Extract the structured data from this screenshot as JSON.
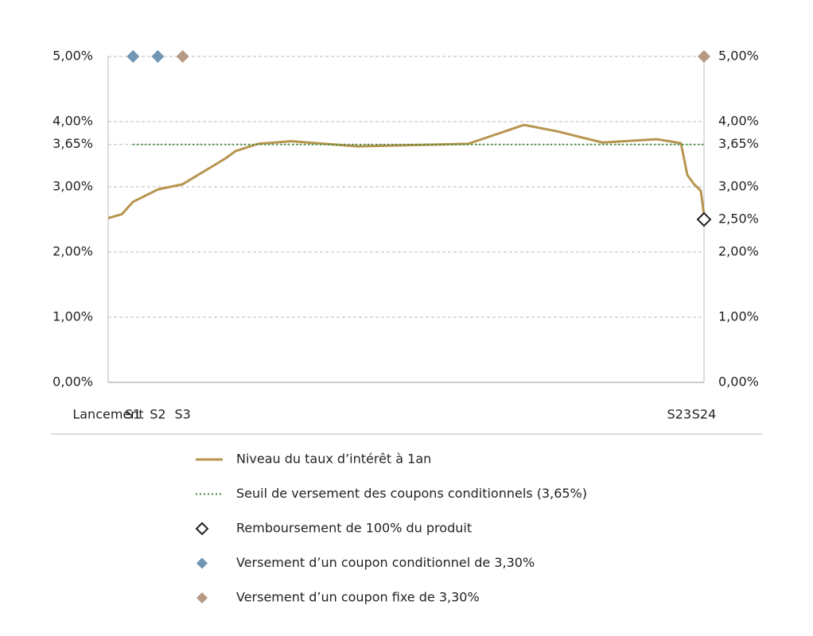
{
  "chart_data": {
    "type": "line",
    "xlim": [
      0,
      24
    ],
    "xticks": [
      {
        "value": 0,
        "label": "Lancement"
      },
      {
        "value": 1,
        "label": "S1"
      },
      {
        "value": 2,
        "label": "S2"
      },
      {
        "value": 3,
        "label": "S3"
      },
      {
        "value": 23,
        "label": "S23"
      },
      {
        "value": 24,
        "label": "S24"
      }
    ],
    "ylim": [
      0,
      5
    ],
    "yticks": [
      {
        "value": 0,
        "label": "0,00%"
      },
      {
        "value": 1,
        "label": "1,00%"
      },
      {
        "value": 2,
        "label": "2,00%"
      },
      {
        "value": 3,
        "label": "3,00%"
      },
      {
        "value": 3.65,
        "label": "3,65%"
      },
      {
        "value": 4,
        "label": "4,00%"
      },
      {
        "value": 5,
        "label": "5,00%"
      }
    ],
    "y2lim": [
      0,
      5
    ],
    "y2ticks": [
      {
        "value": 0,
        "label": "0,00%"
      },
      {
        "value": 1,
        "label": "1,00%"
      },
      {
        "value": 2,
        "label": "2,00%"
      },
      {
        "value": 2.5,
        "label": "2,50%"
      },
      {
        "value": 3,
        "label": "3,00%"
      },
      {
        "value": 3.65,
        "label": "3,65%"
      },
      {
        "value": 4,
        "label": "4,00%"
      },
      {
        "value": 5,
        "label": "5,00%"
      }
    ],
    "grid": true,
    "series": [
      {
        "name": "Niveau du taux d’intérêt à 1an",
        "color": "#b8954f",
        "style": "solid",
        "x": [
          0,
          0.55,
          1,
          2,
          3,
          4.7,
          5.14,
          6.04,
          7.38,
          10.05,
          14.5,
          16.75,
          18.1,
          19.9,
          22.1,
          23.07,
          23.33,
          23.6,
          23.87,
          24
        ],
        "values": [
          2.52,
          2.58,
          2.77,
          2.96,
          3.04,
          3.43,
          3.55,
          3.66,
          3.7,
          3.62,
          3.66,
          3.95,
          3.85,
          3.68,
          3.73,
          3.67,
          3.18,
          3.04,
          2.94,
          2.57
        ]
      },
      {
        "name": "Seuil de versement des coupons conditionnels (3,65%)",
        "color": "#3d8b37",
        "style": "dotted",
        "x": [
          1,
          24
        ],
        "values": [
          3.65,
          3.65
        ]
      },
      {
        "name": "Remboursement de 100% du produit",
        "color": "#222222",
        "style": "diamond-outline",
        "x": [
          24
        ],
        "values": [
          2.5
        ]
      },
      {
        "name": "Versement d’un coupon conditionnel de 3,30%",
        "color": "#7096b3",
        "style": "diamond",
        "x": [
          1,
          2
        ],
        "values": [
          5,
          5
        ]
      },
      {
        "name": "Versement d’un coupon fixe de 3,30%",
        "color": "#b59a86",
        "style": "diamond",
        "x": [
          3,
          24
        ],
        "values": [
          5,
          5
        ]
      }
    ]
  }
}
